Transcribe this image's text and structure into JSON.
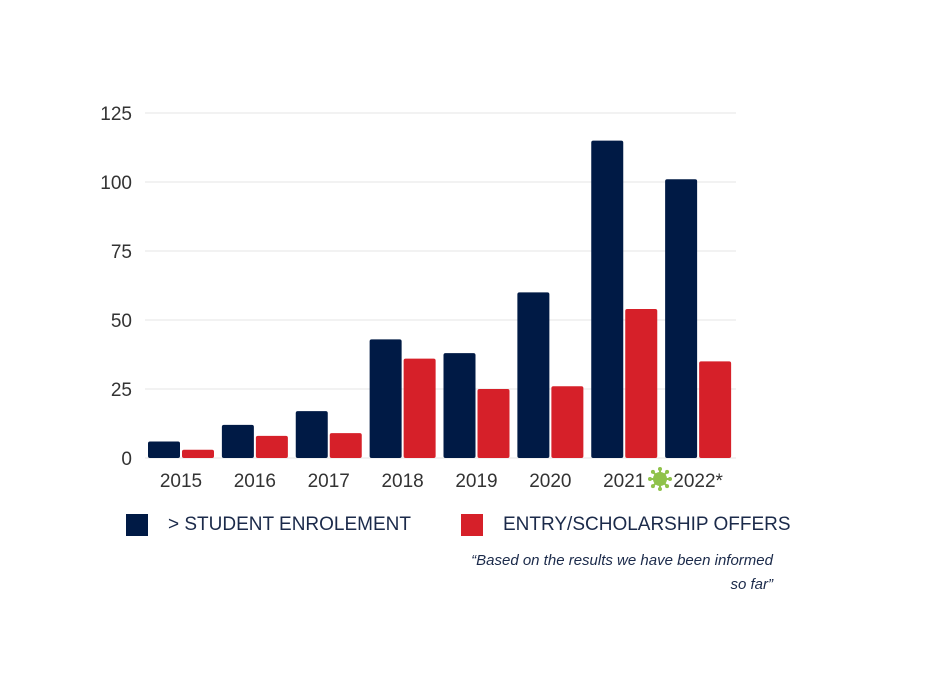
{
  "chart_data": {
    "type": "bar",
    "categories": [
      "2015",
      "2016",
      "2017",
      "2018",
      "2019",
      "2020",
      "2021",
      "2022*"
    ],
    "series": [
      {
        "name": "> STUDENT ENROLEMENT",
        "values": [
          6,
          12,
          17,
          43,
          38,
          60,
          115,
          101
        ],
        "color": "#001a45"
      },
      {
        "name": "ENTRY/SCHOLARSHIP OFFERS",
        "values": [
          3,
          8,
          9,
          36,
          25,
          26,
          54,
          35
        ],
        "color": "#d62029"
      }
    ],
    "yticks": [
      0,
      25,
      50,
      75,
      100,
      125
    ],
    "ylim": [
      0,
      125
    ],
    "grid": true,
    "legend": "bottom",
    "annotation": "“Based on the results we have been informed so far”"
  },
  "colors": {
    "grid": "#e6e6e6",
    "tick_text": "#333333",
    "legend_text": "#1b2a4a",
    "covid_icon": "#8fc24a"
  },
  "icons": {
    "covid": "virus-icon"
  }
}
